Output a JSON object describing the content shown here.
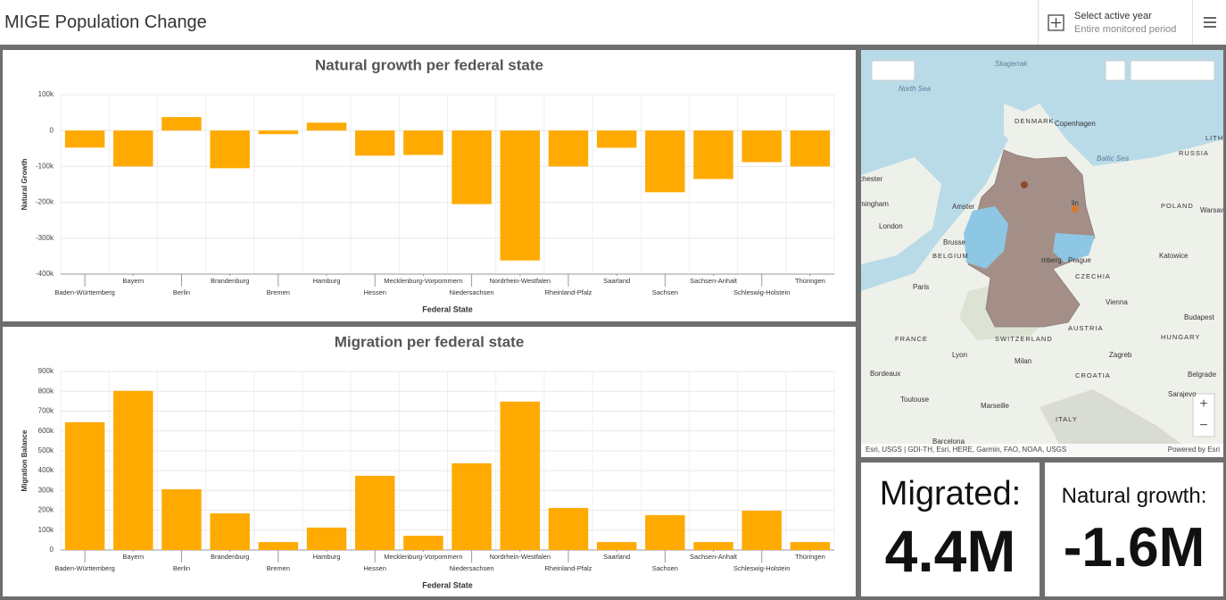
{
  "header": {
    "title": "MIGE Population Change",
    "year_label": "Select active year",
    "year_value": "Entire monitored period"
  },
  "chart_data": [
    {
      "type": "bar",
      "title": "Natural growth per federal state",
      "x_label": "Federal State",
      "y_label": "Natural Growth",
      "color": "#ffaa00",
      "grid": true,
      "categories": [
        "Baden-Württemberg",
        "Bayern",
        "Berlin",
        "Brandenburg",
        "Bremen",
        "Hamburg",
        "Hessen",
        "Mecklenburg-Vorpommern",
        "Niedersachsen",
        "Nordrhein-Westfalen",
        "Rheinland-Pfalz",
        "Saarland",
        "Sachsen",
        "Sachsen-Anhalt",
        "Schleswig-Holstein",
        "Thüringen"
      ],
      "values": [
        -47500,
        -100000,
        37500,
        -105000,
        -10000,
        22000,
        -70000,
        -68000,
        -205000,
        -362000,
        -100000,
        -48000,
        -172000,
        -135000,
        -88000,
        -100000
      ],
      "ylim": [
        -400000,
        100000
      ],
      "yticks": [
        {
          "value": 100000,
          "label": "100k"
        },
        0,
        {
          "value": -100000,
          "label": "-100k"
        },
        {
          "value": -200000,
          "label": "-200k"
        },
        {
          "value": -300000,
          "label": "-300k"
        },
        {
          "value": -400000,
          "label": "-400k"
        }
      ]
    },
    {
      "type": "bar",
      "title": "Migration per federal state",
      "x_label": "Federal State",
      "y_label": "Migration Balance",
      "color": "#ffaa00",
      "grid": true,
      "categories": [
        "Baden-Württemberg",
        "Bayern",
        "Berlin",
        "Brandenburg",
        "Bremen",
        "Hamburg",
        "Hessen",
        "Mecklenburg-Vorpommern",
        "Niedersachsen",
        "Nordrhein-Westfalen",
        "Rheinland-Pfalz",
        "Saarland",
        "Sachsen",
        "Sachsen-Anhalt",
        "Schleswig-Holstein",
        "Thüringen"
      ],
      "values": [
        644000,
        802000,
        306000,
        185000,
        40000,
        113000,
        374000,
        72000,
        437000,
        748000,
        212000,
        40000,
        176000,
        40000,
        198000,
        40000
      ],
      "ylim": [
        0,
        900000
      ],
      "yticks": [
        0,
        {
          "value": 100000,
          "label": "100k"
        },
        {
          "value": 200000,
          "label": "200k"
        },
        {
          "value": 300000,
          "label": "300k"
        },
        {
          "value": 400000,
          "label": "400k"
        },
        {
          "value": 500000,
          "label": "500k"
        },
        {
          "value": 600000,
          "label": "600k"
        },
        {
          "value": 700000,
          "label": "700k"
        },
        {
          "value": 800000,
          "label": "800k"
        },
        {
          "value": 900000,
          "label": "900k"
        }
      ]
    }
  ],
  "map": {
    "labels": [
      "Skagerrak",
      "North Sea",
      "DENMARK",
      "Copenhagen",
      "Baltic Sea",
      "RUSSIA",
      "chester",
      "mingham",
      "Amster",
      "London",
      "Brusse",
      "BELGIUM",
      "POLAND",
      "Warsaw",
      "Prague",
      "CZECHIA",
      "Katowice",
      "Paris",
      "Vienna",
      "Budapest",
      "FRANCE",
      "SWITZERLAND",
      "AUSTRIA",
      "HUNGARY",
      "Lyon",
      "Milan",
      "Zagreb",
      "Bordeaux",
      "CROATIA",
      "Belgrade",
      "Toulouse",
      "Marseille",
      "Sarajevo",
      "ITALY",
      "Barcelona",
      "LITH",
      "lin",
      "mberg"
    ],
    "attribution": "Esri, USGS | GDI-TH, Esri, HERE, Garmin, FAO, NOAA, USGS",
    "powered": "Powered by Esri"
  },
  "indicators": [
    {
      "label": "Migrated:",
      "value": "4.4M"
    },
    {
      "label": "Natural growth:",
      "value": "-1.6M"
    }
  ]
}
